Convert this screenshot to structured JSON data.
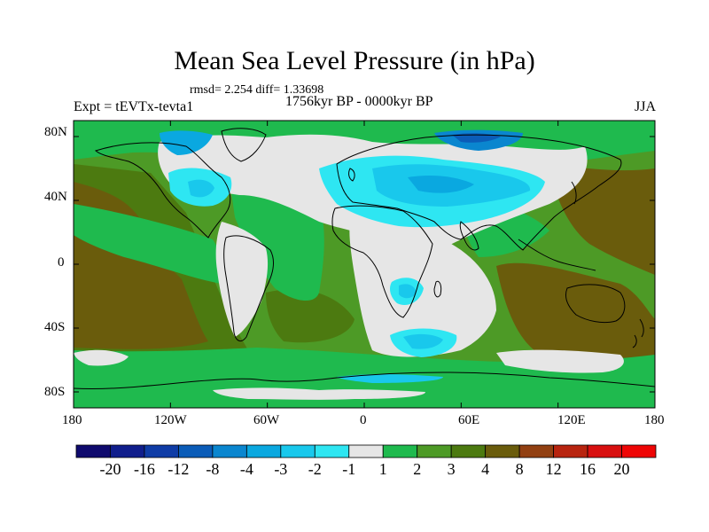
{
  "title": "Mean Sea Level Pressure (in hPa)",
  "stats": "rmsd= 2.254 diff= 1.33698",
  "period": "1756kyr BP - 0000kyr BP",
  "experiment": "Expt = tEVTx-tevta1",
  "season": "JJA",
  "chart_data": {
    "type": "heatmap",
    "variable": "Mean Sea Level Pressure difference",
    "units": "hPa",
    "x_ticks": [
      "180",
      "120W",
      "60W",
      "0",
      "60E",
      "120E",
      "180"
    ],
    "y_ticks": [
      "80N",
      "40N",
      "0",
      "40S",
      "80S"
    ],
    "lon_range": [
      -180,
      180
    ],
    "lat_range": [
      -90,
      90
    ],
    "colorbar": {
      "labels": [
        "-20",
        "-16",
        "-12",
        "-8",
        "-4",
        "-3",
        "-2",
        "-1",
        "1",
        "2",
        "3",
        "4",
        "8",
        "12",
        "16",
        "20"
      ],
      "colors": [
        "#0f0a6e",
        "#101e8c",
        "#0f3ca6",
        "#0b5cb8",
        "#0a86cf",
        "#0aa8e0",
        "#19c8ec",
        "#2ee6f2",
        "#e6e6e6",
        "#1fba4e",
        "#4d9a26",
        "#4c7a10",
        "#6a5c0c",
        "#924012",
        "#b8240f",
        "#d80f0f",
        "#ee0505"
      ]
    },
    "regions": [
      {
        "label": "broad positive anomaly over Pacific and Indian oceans",
        "class": "3-4 / 4-8",
        "lon": [
          -180,
          180
        ],
        "lat": [
          -50,
          50
        ]
      },
      {
        "label": "negative anomaly over Eurasia",
        "class": "-2 to -3",
        "lon_center": 35,
        "lat_center": 45
      },
      {
        "label": "negative anomaly over Arctic Siberia",
        "class": "-4 to -8",
        "lon_center": 65,
        "lat_center": 78
      },
      {
        "label": "negative anomaly over North America",
        "class": "-2 to -3",
        "lon_center": -95,
        "lat_center": 55
      },
      {
        "label": "negative anomaly southeast of Africa",
        "class": "-2 to -3",
        "lon_center": 30,
        "lat_center": -55
      },
      {
        "label": "negative anomaly over southern Africa",
        "class": "-2 to -3",
        "lon_center": 28,
        "lat_center": -15
      },
      {
        "label": "near-zero band Southern Ocean",
        "class": "-1 to 1",
        "lon": [
          -180,
          180
        ],
        "lat_center": -68
      },
      {
        "label": "Antarctic coastal anomalies",
        "class": "mixed",
        "lat_center": -82
      }
    ]
  }
}
